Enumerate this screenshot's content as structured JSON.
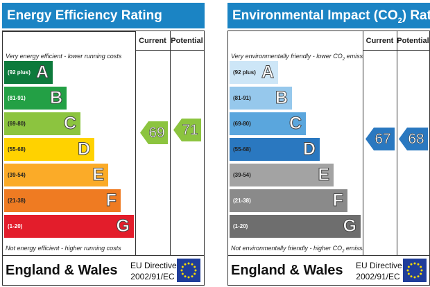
{
  "colors": {
    "header": "#1b84c4",
    "energy_bands": [
      "#0d7a3c",
      "#23a045",
      "#8cc43f",
      "#ffd200",
      "#fbab28",
      "#ef7b22",
      "#e31d2b"
    ],
    "environment_bands": [
      "#cde6f7",
      "#96c8ec",
      "#5aa6dd",
      "#2a78c0",
      "#a3a3a3",
      "#8a8a8a",
      "#6e6e6e"
    ],
    "eu_flag": "#1f3d9a",
    "eu_stars": "#ffdd00"
  },
  "energy": {
    "title": "Energy Efficiency Rating",
    "col_current": "Current",
    "col_potential": "Potential",
    "top_note": "Very energy efficient - lower running costs",
    "bottom_note": "Not energy efficient - higher running costs",
    "bands": [
      {
        "range": "(92 plus)",
        "letter": "A"
      },
      {
        "range": "(81-91)",
        "letter": "B"
      },
      {
        "range": "(69-80)",
        "letter": "C"
      },
      {
        "range": "(55-68)",
        "letter": "D"
      },
      {
        "range": "(39-54)",
        "letter": "E"
      },
      {
        "range": "(21-38)",
        "letter": "F"
      },
      {
        "range": "(1-20)",
        "letter": "G"
      }
    ],
    "current": "69",
    "potential": "71",
    "footer_country": "England & Wales",
    "footer_directive_line1": "EU Directive",
    "footer_directive_line2": "2002/91/EC"
  },
  "environment": {
    "title_main": "Environmental Impact (CO",
    "title_sub": "2",
    "title_end": ") Rating",
    "col_current": "Current",
    "col_potential": "Potential",
    "top_note_main": "Very environmentally friendly - lower CO",
    "top_note_sub": "2",
    "top_note_end": " emissions",
    "bottom_note_main": "Not environmentally friendly - higher CO",
    "bottom_note_sub": "2",
    "bottom_note_end": " emissions",
    "bands": [
      {
        "range": "(92 plus)",
        "letter": "A"
      },
      {
        "range": "(81-91)",
        "letter": "B"
      },
      {
        "range": "(69-80)",
        "letter": "C"
      },
      {
        "range": "(55-68)",
        "letter": "D"
      },
      {
        "range": "(39-54)",
        "letter": "E"
      },
      {
        "range": "(21-38)",
        "letter": "F"
      },
      {
        "range": "(1-20)",
        "letter": "G"
      }
    ],
    "current": "67",
    "potential": "68",
    "footer_country": "England & Wales",
    "footer_directive_line1": "EU Directive",
    "footer_directive_line2": "2002/91/EC"
  }
}
